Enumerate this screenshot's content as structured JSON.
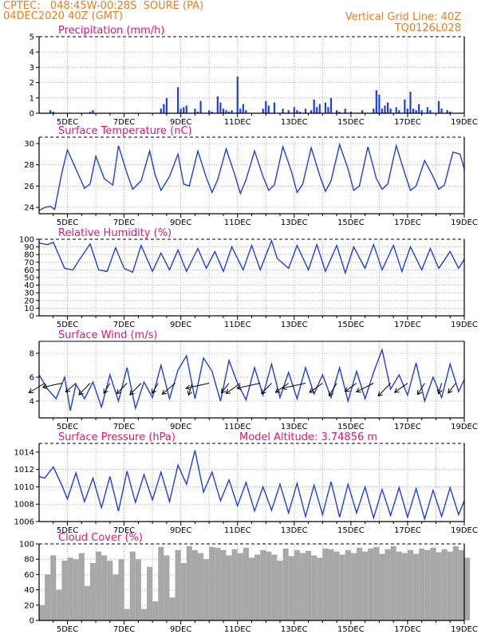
{
  "header": {
    "line1_left": "CPTEC:   048:45W-00:28S  SOURE (PA)",
    "line2_left": "04DEC2020 40Z (GMT)",
    "line1_right": "Vertical Grid Line: 40Z",
    "line2_right": "TQ0126L028"
  },
  "colors": {
    "header": "#e87f1e",
    "title": "#e0147a",
    "line": "#1f3fdb",
    "cloud": "#a8a8a8",
    "arrow": "#000000"
  },
  "x_ticks": [
    "5DEC",
    "7DEC",
    "9DEC",
    "11DEC",
    "13DEC",
    "15DEC",
    "17DEC",
    "19DEC"
  ],
  "chart_data": [
    {
      "id": "precip",
      "type": "bar",
      "title": "Precipitation (mm/h)",
      "ylim": [
        0,
        5
      ],
      "yticks": [
        "0",
        "1",
        "2",
        "3",
        "4",
        "5"
      ],
      "x": [
        4.4,
        4.5,
        5.8,
        5.9,
        8.3,
        8.4,
        8.5,
        8.9,
        9.0,
        9.1,
        9.2,
        9.5,
        9.6,
        9.7,
        10.0,
        10.1,
        10.3,
        10.4,
        10.5,
        10.6,
        10.7,
        10.8,
        11.0,
        11.1,
        11.2,
        11.3,
        11.9,
        12.0,
        12.1,
        12.3,
        12.6,
        12.8,
        13.0,
        13.1,
        13.2,
        13.4,
        13.6,
        13.7,
        13.8,
        13.9,
        14.1,
        14.2,
        14.3,
        14.5,
        14.6,
        14.8,
        15.0,
        15.4,
        15.8,
        15.9,
        16.0,
        16.1,
        16.2,
        16.3,
        16.4,
        16.6,
        16.7,
        16.9,
        17.0,
        17.1,
        17.2,
        17.3,
        17.4,
        17.5,
        17.7,
        17.8,
        18.1,
        18.2,
        18.4,
        18.5
      ],
      "values": [
        0.2,
        0.1,
        0.1,
        0.2,
        0.3,
        0.6,
        1.0,
        1.7,
        0.3,
        0.4,
        0.5,
        0.3,
        0.1,
        0.8,
        0.2,
        0.1,
        1.1,
        0.7,
        0.3,
        0.2,
        0.1,
        0.2,
        2.4,
        0.3,
        0.6,
        0.2,
        0.3,
        0.8,
        0.5,
        0.7,
        0.3,
        0.2,
        0.4,
        0.2,
        0.1,
        0.3,
        0.2,
        0.9,
        0.4,
        0.6,
        0.7,
        0.4,
        1.0,
        0.2,
        0.1,
        0.3,
        0.1,
        0.2,
        0.3,
        1.5,
        1.2,
        0.3,
        0.5,
        0.7,
        0.3,
        0.4,
        0.2,
        0.9,
        0.3,
        1.4,
        0.3,
        0.2,
        0.6,
        0.2,
        0.4,
        0.2,
        0.8,
        0.3,
        0.2,
        0.1
      ]
    },
    {
      "id": "temp",
      "type": "line",
      "title": "Surface Temperature (nC)",
      "ylim": [
        23.4,
        30.6
      ],
      "yticks": [
        "24",
        "26",
        "28",
        "30"
      ],
      "series": [
        {
          "x": [
            4.0,
            4.2,
            4.4,
            4.55,
            4.8,
            5.0,
            5.2,
            5.6,
            5.8,
            6.0,
            6.3,
            6.6,
            6.8,
            7.1,
            7.3,
            7.6,
            7.9,
            8.1,
            8.3,
            8.6,
            8.9,
            9.1,
            9.3,
            9.6,
            9.9,
            10.1,
            10.3,
            10.6,
            10.9,
            11.1,
            11.3,
            11.6,
            11.9,
            12.1,
            12.3,
            12.6,
            12.9,
            13.1,
            13.3,
            13.6,
            13.9,
            14.1,
            14.3,
            14.6,
            14.9,
            15.1,
            15.3,
            15.6,
            15.9,
            16.1,
            16.3,
            16.6,
            16.9,
            17.1,
            17.3,
            17.6,
            17.9,
            18.1,
            18.3,
            18.6,
            18.85,
            19.0
          ],
          "values": [
            23.7,
            24.0,
            24.1,
            23.8,
            27.2,
            29.4,
            28.2,
            25.8,
            26.2,
            28.8,
            26.7,
            26.1,
            29.8,
            27.2,
            25.7,
            26.5,
            29.3,
            27.0,
            25.6,
            26.9,
            29.0,
            26.2,
            26.0,
            29.3,
            26.8,
            25.4,
            26.6,
            29.5,
            27.1,
            25.3,
            26.6,
            29.3,
            26.9,
            25.6,
            26.1,
            29.7,
            27.4,
            25.4,
            26.2,
            29.6,
            27.0,
            25.5,
            26.5,
            29.9,
            27.6,
            25.6,
            26.0,
            29.7,
            26.7,
            25.7,
            26.2,
            29.8,
            27.2,
            25.6,
            26.0,
            28.4,
            26.9,
            25.7,
            26.1,
            29.2,
            29.0,
            27.6
          ]
        }
      ]
    },
    {
      "id": "rh",
      "type": "line",
      "title": "Relative Humidity (%)",
      "ylim": [
        0,
        100
      ],
      "yticks": [
        "0",
        "10",
        "20",
        "30",
        "40",
        "50",
        "60",
        "70",
        "80",
        "90",
        "100"
      ],
      "series": [
        {
          "x": [
            4.0,
            4.3,
            4.5,
            4.9,
            5.2,
            5.4,
            5.8,
            6.1,
            6.4,
            6.7,
            7.0,
            7.3,
            7.6,
            8.0,
            8.3,
            8.6,
            8.9,
            9.2,
            9.6,
            9.9,
            10.2,
            10.5,
            10.8,
            11.2,
            11.5,
            11.8,
            12.2,
            12.4,
            12.8,
            13.1,
            13.5,
            13.8,
            14.1,
            14.5,
            14.8,
            15.1,
            15.5,
            15.8,
            16.1,
            16.5,
            16.8,
            17.1,
            17.5,
            17.8,
            18.1,
            18.5,
            18.8,
            19.0
          ],
          "values": [
            95,
            93,
            96,
            62,
            60,
            72,
            94,
            60,
            58,
            89,
            62,
            57,
            92,
            58,
            82,
            60,
            86,
            58,
            88,
            62,
            84,
            58,
            90,
            60,
            92,
            60,
            98,
            75,
            62,
            92,
            60,
            93,
            58,
            92,
            56,
            90,
            62,
            93,
            60,
            92,
            58,
            90,
            60,
            88,
            62,
            84,
            62,
            74
          ]
        }
      ]
    },
    {
      "id": "wind",
      "type": "line",
      "title": "Surface Wind (m/s)",
      "ylim": [
        2.6,
        9.0
      ],
      "yticks": [
        "4",
        "6",
        "8"
      ],
      "series": [
        {
          "x": [
            4.0,
            4.3,
            4.6,
            4.9,
            5.1,
            5.3,
            5.6,
            5.9,
            6.2,
            6.5,
            6.8,
            7.1,
            7.4,
            7.7,
            8.0,
            8.3,
            8.6,
            8.9,
            9.2,
            9.5,
            9.8,
            10.1,
            10.4,
            10.7,
            11.0,
            11.3,
            11.6,
            11.9,
            12.2,
            12.5,
            12.8,
            13.1,
            13.4,
            13.7,
            14.0,
            14.3,
            14.6,
            14.9,
            15.2,
            15.5,
            15.8,
            16.1,
            16.4,
            16.7,
            17.0,
            17.3,
            17.6,
            17.9,
            18.2,
            18.5,
            18.8,
            19.0
          ],
          "values": [
            6.2,
            5.0,
            4.2,
            6.0,
            3.2,
            5.4,
            4.2,
            5.6,
            3.5,
            6.2,
            4.0,
            6.8,
            3.4,
            5.6,
            4.3,
            7.0,
            4.2,
            6.6,
            7.8,
            4.2,
            7.6,
            6.5,
            4.0,
            7.4,
            5.5,
            4.1,
            6.8,
            4.5,
            7.1,
            4.3,
            6.4,
            4.2,
            6.8,
            4.6,
            6.2,
            4.3,
            6.8,
            4.0,
            6.5,
            4.2,
            6.4,
            8.3,
            5.0,
            6.2,
            4.5,
            7.2,
            4.0,
            6.0,
            4.3,
            7.1,
            4.8,
            5.8
          ]
        }
      ],
      "arrows": [
        {
          "x": 4.2,
          "dir": 225,
          "len": 1.0
        },
        {
          "x": 4.8,
          "dir": 200,
          "len": 0.9
        },
        {
          "x": 5.3,
          "dir": 235,
          "len": 0.8
        },
        {
          "x": 5.8,
          "dir": 240,
          "len": 1.0
        },
        {
          "x": 6.5,
          "dir": 250,
          "len": 0.8
        },
        {
          "x": 7.1,
          "dir": 240,
          "len": 0.9
        },
        {
          "x": 7.6,
          "dir": 240,
          "len": 1.0
        },
        {
          "x": 8.2,
          "dir": 250,
          "len": 0.8
        },
        {
          "x": 8.8,
          "dir": 235,
          "len": 1.0
        },
        {
          "x": 9.4,
          "dir": 260,
          "len": 0.9
        },
        {
          "x": 10.0,
          "dir": 200,
          "len": 1.1
        },
        {
          "x": 10.7,
          "dir": 245,
          "len": 0.8
        },
        {
          "x": 11.1,
          "dir": 230,
          "len": 1.0
        },
        {
          "x": 11.8,
          "dir": 200,
          "len": 1.1
        },
        {
          "x": 12.2,
          "dir": 240,
          "len": 0.9
        },
        {
          "x": 12.8,
          "dir": 230,
          "len": 0.9
        },
        {
          "x": 13.4,
          "dir": 200,
          "len": 1.1
        },
        {
          "x": 14.0,
          "dir": 230,
          "len": 0.9
        },
        {
          "x": 14.5,
          "dir": 250,
          "len": 1.0
        },
        {
          "x": 15.2,
          "dir": 230,
          "len": 0.8
        },
        {
          "x": 15.8,
          "dir": 220,
          "len": 1.0
        },
        {
          "x": 16.4,
          "dir": 240,
          "len": 1.1
        },
        {
          "x": 17.0,
          "dir": 230,
          "len": 0.9
        },
        {
          "x": 17.6,
          "dir": 250,
          "len": 0.9
        },
        {
          "x": 18.2,
          "dir": 260,
          "len": 0.8
        },
        {
          "x": 18.7,
          "dir": 245,
          "len": 0.8
        }
      ]
    },
    {
      "id": "pres",
      "type": "line",
      "title": "Surface Pressure (hPa)",
      "subtitle": "Model Altitude: 3.74856 m",
      "ylim": [
        1006,
        1015
      ],
      "yticks": [
        "1006",
        "1008",
        "1010",
        "1012",
        "1014"
      ],
      "series": [
        {
          "x": [
            4.0,
            4.2,
            4.5,
            4.8,
            5.0,
            5.3,
            5.6,
            5.9,
            6.2,
            6.5,
            6.8,
            7.1,
            7.4,
            7.7,
            8.0,
            8.3,
            8.6,
            8.9,
            9.2,
            9.5,
            9.8,
            10.1,
            10.4,
            10.7,
            11.0,
            11.3,
            11.6,
            11.9,
            12.2,
            12.5,
            12.8,
            13.1,
            13.4,
            13.7,
            14.0,
            14.3,
            14.6,
            14.9,
            15.2,
            15.5,
            15.8,
            16.1,
            16.4,
            16.7,
            17.0,
            17.3,
            17.6,
            17.9,
            18.2,
            18.5,
            18.8,
            19.0
          ],
          "values": [
            1011.2,
            1011.0,
            1012.3,
            1010.2,
            1008.6,
            1011.6,
            1008.3,
            1011.0,
            1007.6,
            1011.2,
            1007.2,
            1011.8,
            1008.2,
            1011.4,
            1008.5,
            1011.7,
            1008.3,
            1012.5,
            1010.3,
            1014.2,
            1009.4,
            1011.7,
            1008.4,
            1010.8,
            1007.8,
            1010.5,
            1007.2,
            1010.0,
            1007.3,
            1010.3,
            1007.0,
            1010.4,
            1006.6,
            1010.2,
            1006.8,
            1010.6,
            1006.5,
            1010.3,
            1007.0,
            1010.0,
            1006.4,
            1009.7,
            1006.7,
            1009.9,
            1006.5,
            1009.8,
            1006.3,
            1009.6,
            1006.6,
            1009.9,
            1006.8,
            1008.4
          ]
        }
      ]
    },
    {
      "id": "cloud",
      "type": "bar",
      "title": "Cloud Cover (%)",
      "ylim": [
        0,
        100
      ],
      "yticks": [
        "0",
        "20",
        "40",
        "60",
        "80",
        "100"
      ],
      "x": [
        4.0,
        4.2,
        4.4,
        4.6,
        4.8,
        5.0,
        5.2,
        5.4,
        5.6,
        5.8,
        6.0,
        6.2,
        6.4,
        6.6,
        6.8,
        7.0,
        7.2,
        7.4,
        7.6,
        7.8,
        8.0,
        8.2,
        8.4,
        8.6,
        8.8,
        9.0,
        9.2,
        9.4,
        9.6,
        9.8,
        10.0,
        10.2,
        10.4,
        10.6,
        10.8,
        11.0,
        11.2,
        11.4,
        11.6,
        11.8,
        12.0,
        12.2,
        12.4,
        12.6,
        12.8,
        13.0,
        13.2,
        13.4,
        13.6,
        13.8,
        14.0,
        14.2,
        14.4,
        14.6,
        14.8,
        15.0,
        15.2,
        15.4,
        15.6,
        15.8,
        16.0,
        16.2,
        16.4,
        16.6,
        16.8,
        17.0,
        17.2,
        17.4,
        17.6,
        17.8,
        18.0,
        18.2,
        18.4,
        18.6,
        18.8,
        19.0
      ],
      "values": [
        20,
        60,
        85,
        40,
        78,
        82,
        80,
        88,
        45,
        75,
        90,
        85,
        78,
        60,
        80,
        15,
        90,
        80,
        15,
        70,
        25,
        96,
        85,
        30,
        92,
        75,
        97,
        92,
        88,
        80,
        96,
        95,
        92,
        85,
        93,
        88,
        95,
        82,
        86,
        92,
        90,
        86,
        78,
        94,
        84,
        92,
        88,
        91,
        85,
        82,
        94,
        93,
        90,
        86,
        92,
        88,
        95,
        90,
        94,
        96,
        87,
        93,
        97,
        90,
        88,
        92,
        87,
        94,
        92,
        95,
        89,
        93,
        90,
        97,
        92,
        82
      ]
    }
  ]
}
